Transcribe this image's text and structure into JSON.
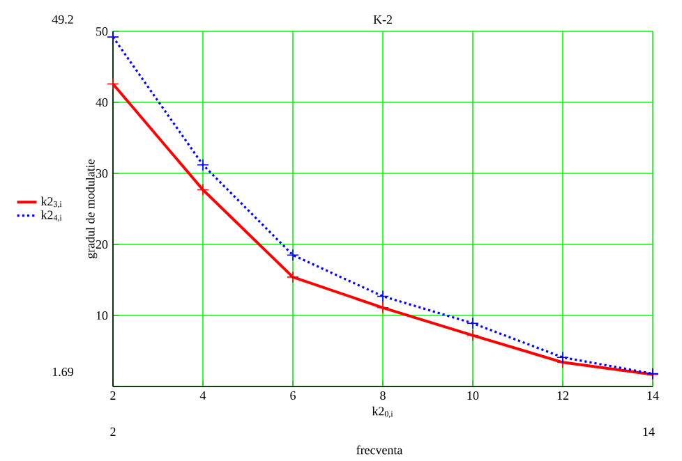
{
  "chart_data": {
    "type": "line",
    "title": "K-2",
    "xlabel": "k2$_{0,i}$",
    "ylabel": "gradul de modulatie",
    "x": [
      2,
      4,
      6,
      8,
      10,
      12,
      14
    ],
    "series": [
      {
        "name": "k2$_{3,i}$",
        "color": "#ff0000",
        "line_style": "solid",
        "values": [
          42.6,
          27.7,
          15.4,
          11.1,
          7.2,
          3.4,
          1.7
        ]
      },
      {
        "name": "k2$_{4,i}$",
        "color": "#0000ff",
        "line_style": "dotted",
        "values": [
          49.2,
          31.2,
          18.5,
          12.7,
          8.9,
          4.1,
          1.8
        ]
      }
    ],
    "xlim": [
      2,
      14
    ],
    "xticks": [
      2,
      4,
      6,
      8,
      10,
      12,
      14
    ],
    "ylim": [
      0,
      50
    ],
    "yticks": [
      {
        "value": 0,
        "label": null
      },
      10,
      20,
      30,
      40,
      50
    ],
    "grid": true,
    "legend": "left",
    "marker": "cross",
    "annotations": [
      "49.2",
      "1.69",
      "2",
      "14",
      "frecventa"
    ]
  }
}
